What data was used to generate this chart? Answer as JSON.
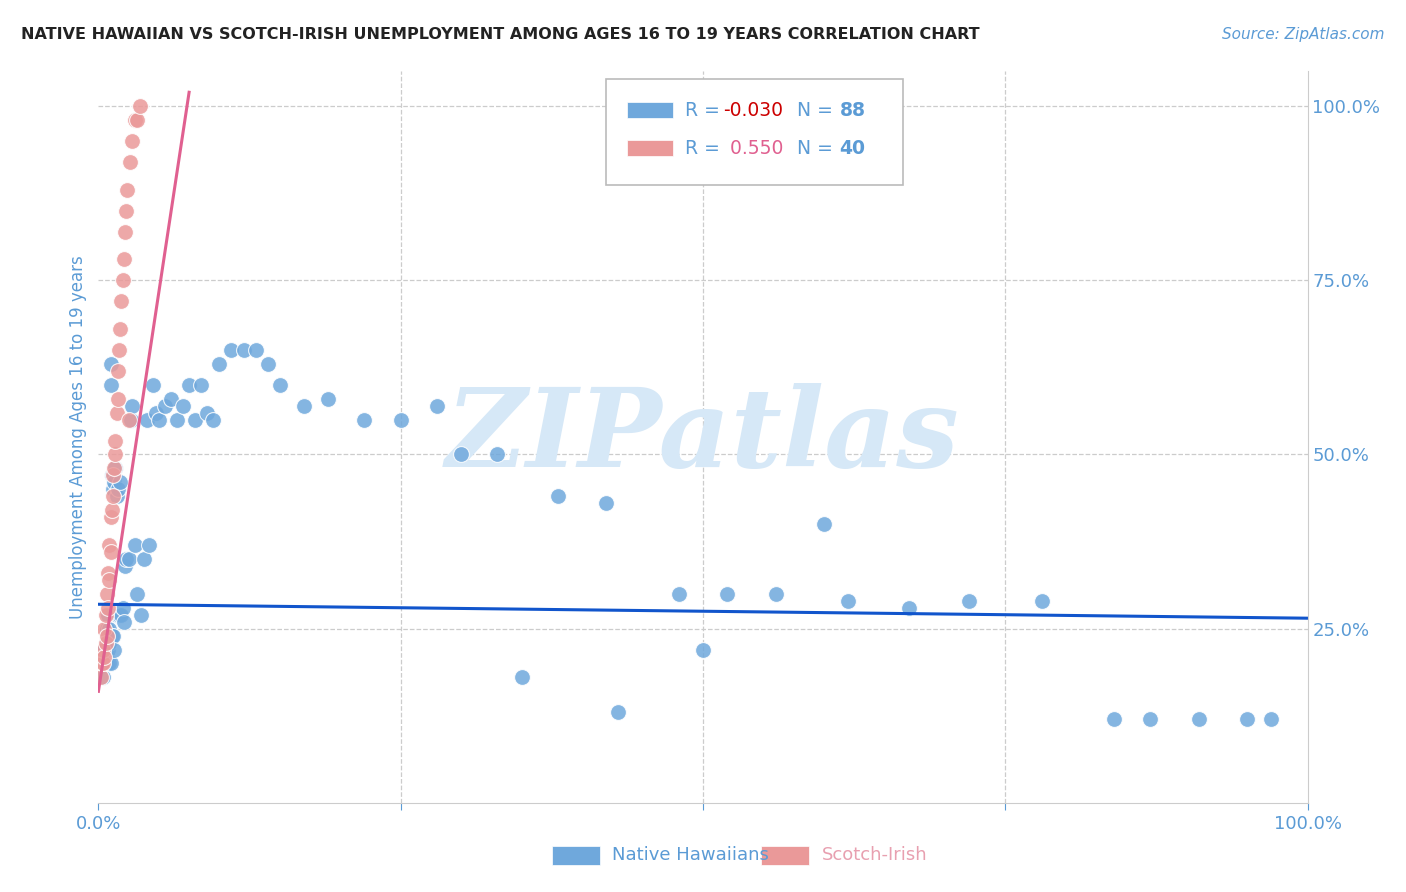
{
  "title": "NATIVE HAWAIIAN VS SCOTCH-IRISH UNEMPLOYMENT AMONG AGES 16 TO 19 YEARS CORRELATION CHART",
  "source": "Source: ZipAtlas.com",
  "ylabel": "Unemployment Among Ages 16 to 19 years",
  "xmin": 0.0,
  "xmax": 1.0,
  "ymin": 0.0,
  "ymax": 1.05,
  "blue_R": -0.03,
  "blue_N": 88,
  "pink_R": 0.55,
  "pink_N": 40,
  "blue_color": "#6fa8dc",
  "pink_color": "#ea9999",
  "blue_line_color": "#1155cc",
  "pink_line_color": "#e06090",
  "watermark": "ZIPatlas",
  "watermark_color": "#d6e8f7",
  "blue_x": [
    0.002,
    0.003,
    0.004,
    0.004,
    0.005,
    0.005,
    0.006,
    0.006,
    0.007,
    0.007,
    0.007,
    0.008,
    0.008,
    0.009,
    0.009,
    0.009,
    0.01,
    0.01,
    0.01,
    0.011,
    0.011,
    0.012,
    0.012,
    0.013,
    0.013,
    0.014,
    0.015,
    0.015,
    0.016,
    0.017,
    0.018,
    0.019,
    0.02,
    0.021,
    0.022,
    0.023,
    0.025,
    0.027,
    0.028,
    0.03,
    0.032,
    0.035,
    0.038,
    0.04,
    0.042,
    0.045,
    0.048,
    0.05,
    0.055,
    0.06,
    0.065,
    0.07,
    0.075,
    0.08,
    0.085,
    0.09,
    0.095,
    0.1,
    0.11,
    0.12,
    0.13,
    0.14,
    0.15,
    0.17,
    0.19,
    0.22,
    0.25,
    0.28,
    0.3,
    0.33,
    0.38,
    0.42,
    0.48,
    0.52,
    0.56,
    0.62,
    0.67,
    0.72,
    0.78,
    0.84,
    0.87,
    0.91,
    0.95,
    0.97,
    0.5,
    0.6,
    0.43,
    0.35
  ],
  "blue_y": [
    0.2,
    0.22,
    0.18,
    0.2,
    0.2,
    0.22,
    0.2,
    0.21,
    0.2,
    0.23,
    0.25,
    0.22,
    0.27,
    0.2,
    0.23,
    0.25,
    0.63,
    0.6,
    0.2,
    0.24,
    0.47,
    0.45,
    0.24,
    0.22,
    0.46,
    0.48,
    0.27,
    0.44,
    0.45,
    0.27,
    0.46,
    0.27,
    0.28,
    0.26,
    0.34,
    0.35,
    0.35,
    0.55,
    0.57,
    0.37,
    0.3,
    0.27,
    0.35,
    0.55,
    0.37,
    0.6,
    0.56,
    0.55,
    0.57,
    0.58,
    0.55,
    0.57,
    0.6,
    0.55,
    0.6,
    0.56,
    0.55,
    0.63,
    0.65,
    0.65,
    0.65,
    0.63,
    0.6,
    0.57,
    0.58,
    0.55,
    0.55,
    0.57,
    0.5,
    0.5,
    0.44,
    0.43,
    0.3,
    0.3,
    0.3,
    0.29,
    0.28,
    0.29,
    0.29,
    0.12,
    0.12,
    0.12,
    0.12,
    0.12,
    0.22,
    0.4,
    0.13,
    0.18
  ],
  "pink_x": [
    0.002,
    0.003,
    0.003,
    0.004,
    0.004,
    0.005,
    0.005,
    0.006,
    0.006,
    0.007,
    0.007,
    0.008,
    0.008,
    0.009,
    0.009,
    0.01,
    0.01,
    0.011,
    0.012,
    0.012,
    0.013,
    0.014,
    0.014,
    0.015,
    0.016,
    0.016,
    0.017,
    0.018,
    0.019,
    0.02,
    0.021,
    0.022,
    0.023,
    0.024,
    0.025,
    0.026,
    0.028,
    0.03,
    0.032,
    0.034
  ],
  "pink_y": [
    0.18,
    0.2,
    0.21,
    0.2,
    0.22,
    0.21,
    0.25,
    0.23,
    0.27,
    0.24,
    0.3,
    0.28,
    0.33,
    0.32,
    0.37,
    0.36,
    0.41,
    0.42,
    0.44,
    0.47,
    0.48,
    0.5,
    0.52,
    0.56,
    0.58,
    0.62,
    0.65,
    0.68,
    0.72,
    0.75,
    0.78,
    0.82,
    0.85,
    0.88,
    0.55,
    0.92,
    0.95,
    0.98,
    0.98,
    1.0
  ]
}
